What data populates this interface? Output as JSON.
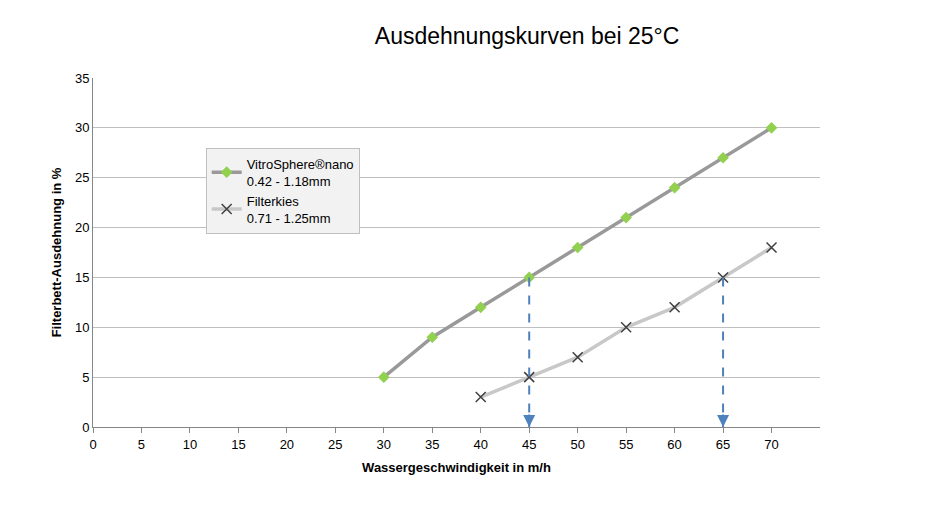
{
  "chart_data": {
    "type": "line",
    "title": "Ausdehnungskurven bei 25°C",
    "x_label": "Wassergeschwindigkeit in m/h",
    "y_label": "Filterbett-Ausdehnung in %",
    "xlim": [
      0,
      75
    ],
    "xticks": [
      0,
      5,
      10,
      15,
      20,
      25,
      30,
      35,
      40,
      45,
      50,
      55,
      60,
      65,
      70
    ],
    "ylim": [
      0,
      35
    ],
    "yticks": [
      0,
      5,
      10,
      15,
      20,
      25,
      30,
      35
    ],
    "grid": "y",
    "legend": "upper left",
    "series": [
      {
        "name": "VitroSphere®nano\n0.42 - 1.18mm",
        "color": "#999999",
        "marker": "diamond",
        "marker_color": "#92d050",
        "x": [
          30,
          35,
          40,
          45,
          50,
          55,
          60,
          65,
          70
        ],
        "values": [
          5,
          9,
          12,
          15,
          18,
          21,
          24,
          27,
          30
        ]
      },
      {
        "name": "Filterkies\n0.71 - 1.25mm",
        "color": "#c8c8c8",
        "marker": "x",
        "marker_color": "#404040",
        "x": [
          40,
          45,
          50,
          55,
          60,
          65,
          70
        ],
        "values": [
          3,
          5,
          7,
          10,
          12,
          15,
          18
        ]
      }
    ],
    "reference_lines": [
      {
        "x": 45,
        "y": 15,
        "color": "#4f81bd",
        "line_style": "dash"
      },
      {
        "x": 65,
        "y": 15,
        "color": "#4f81bd",
        "line_style": "dash"
      }
    ]
  }
}
